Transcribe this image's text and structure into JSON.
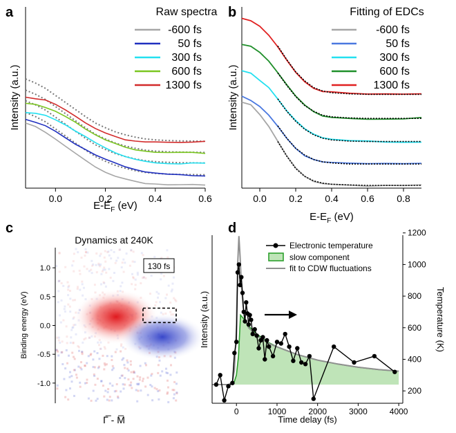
{
  "chart_data": [
    {
      "panel": "a",
      "type": "line",
      "xlabel": "E-EF (eV)",
      "ylabel": "Intensity (a.u.)",
      "xlim": [
        -0.12,
        0.6
      ],
      "x_ticks": [
        "0.0",
        "0.2",
        "0.4",
        "0.6"
      ],
      "legend_title": "Raw spectra",
      "legend_position": "top-right",
      "series": [
        {
          "name": "-600 fs",
          "color": "#a6a6a6",
          "x": [
            -0.12,
            -0.08,
            -0.04,
            0.0,
            0.04,
            0.08,
            0.12,
            0.16,
            0.2,
            0.24,
            0.28,
            0.32,
            0.36,
            0.4,
            0.45,
            0.5,
            0.55,
            0.6
          ],
          "y": [
            5.3,
            4.95,
            4.5,
            3.9,
            3.3,
            2.7,
            2.1,
            1.55,
            1.15,
            0.8,
            0.55,
            0.35,
            0.2,
            0.12,
            0.06,
            0.03,
            0.02,
            0.0
          ]
        },
        {
          "name": "50 fs",
          "color": "#1f2fbf",
          "x": [
            -0.12,
            -0.08,
            -0.04,
            0.0,
            0.04,
            0.08,
            0.12,
            0.16,
            0.2,
            0.24,
            0.28,
            0.32,
            0.36,
            0.4,
            0.45,
            0.5,
            0.55,
            0.6
          ],
          "y": [
            5.6,
            5.4,
            5.1,
            4.6,
            4.05,
            3.55,
            3.05,
            2.6,
            2.2,
            1.85,
            1.55,
            1.3,
            1.12,
            1.0,
            0.92,
            0.88,
            0.86,
            0.85
          ]
        },
        {
          "name": "300 fs",
          "color": "#22e0f0",
          "x": [
            -0.12,
            -0.08,
            -0.04,
            0.0,
            0.04,
            0.08,
            0.12,
            0.16,
            0.2,
            0.24,
            0.28,
            0.32,
            0.36,
            0.4,
            0.45,
            0.5,
            0.55,
            0.6
          ],
          "y": [
            6.2,
            6.1,
            5.9,
            5.55,
            5.1,
            4.6,
            4.1,
            3.6,
            3.15,
            2.8,
            2.5,
            2.25,
            2.08,
            1.98,
            1.9,
            1.86,
            1.85,
            1.85
          ]
        },
        {
          "name": "600 fs",
          "color": "#7ac620",
          "x": [
            -0.12,
            -0.08,
            -0.04,
            0.0,
            0.04,
            0.08,
            0.12,
            0.16,
            0.2,
            0.24,
            0.28,
            0.32,
            0.36,
            0.4,
            0.45,
            0.5,
            0.55,
            0.6
          ],
          "y": [
            6.95,
            6.85,
            6.65,
            6.35,
            5.9,
            5.4,
            4.85,
            4.35,
            3.9,
            3.5,
            3.2,
            3.0,
            2.88,
            2.8,
            2.76,
            2.75,
            2.75,
            2.75
          ]
        },
        {
          "name": "1300 fs",
          "color": "#d22a2a",
          "x": [
            -0.12,
            -0.08,
            -0.04,
            0.0,
            0.04,
            0.08,
            0.12,
            0.16,
            0.2,
            0.24,
            0.28,
            0.32,
            0.36,
            0.4,
            0.45,
            0.5,
            0.55,
            0.6
          ],
          "y": [
            7.55,
            7.4,
            7.2,
            6.85,
            6.4,
            5.85,
            5.3,
            4.8,
            4.4,
            4.1,
            3.9,
            3.78,
            3.72,
            3.7,
            3.7,
            3.7,
            3.7,
            3.7
          ]
        }
      ]
    },
    {
      "panel": "b",
      "type": "line",
      "xlabel": "E-EF (eV)",
      "ylabel": "Intensity (a.u.)",
      "xlim": [
        -0.1,
        0.9
      ],
      "x_ticks": [
        "0.0",
        "0.2",
        "0.4",
        "0.6",
        "0.8"
      ],
      "legend_title": "Fitting of EDCs",
      "legend_position": "top-right",
      "fit_line_style": "black dotted",
      "series": [
        {
          "name": "-600 fs",
          "color": "#a6a6a6",
          "x": [
            -0.1,
            -0.05,
            0.0,
            0.05,
            0.1,
            0.15,
            0.2,
            0.25,
            0.3,
            0.35,
            0.4,
            0.5,
            0.6,
            0.7,
            0.8,
            0.9
          ],
          "y": [
            3.7,
            3.55,
            3.15,
            2.6,
            1.95,
            1.3,
            0.75,
            0.4,
            0.2,
            0.1,
            0.05,
            0.02,
            0.0,
            0.0,
            0.0,
            0.0
          ]
        },
        {
          "name": "50 fs",
          "color": "#4a78e0",
          "x": [
            -0.1,
            -0.05,
            0.0,
            0.05,
            0.1,
            0.15,
            0.2,
            0.25,
            0.3,
            0.35,
            0.4,
            0.5,
            0.6,
            0.7,
            0.8,
            0.9
          ],
          "y": [
            3.95,
            3.75,
            3.5,
            3.15,
            2.65,
            2.1,
            1.65,
            1.35,
            1.15,
            1.05,
            1.0,
            0.95,
            0.95,
            0.95,
            0.95,
            0.95
          ]
        },
        {
          "name": "300 fs",
          "color": "#22e0f0",
          "x": [
            -0.1,
            -0.05,
            0.0,
            0.05,
            0.1,
            0.15,
            0.2,
            0.25,
            0.3,
            0.35,
            0.4,
            0.5,
            0.6,
            0.7,
            0.8,
            0.9
          ],
          "y": [
            5.1,
            5.0,
            4.7,
            4.35,
            3.85,
            3.3,
            2.85,
            2.5,
            2.25,
            2.1,
            2.02,
            1.97,
            1.95,
            1.95,
            1.95,
            1.95
          ]
        },
        {
          "name": "600 fs",
          "color": "#1f8f2a",
          "x": [
            -0.1,
            -0.05,
            0.0,
            0.05,
            0.1,
            0.15,
            0.2,
            0.25,
            0.3,
            0.35,
            0.4,
            0.5,
            0.6,
            0.7,
            0.8,
            0.9
          ],
          "y": [
            6.25,
            6.15,
            5.9,
            5.5,
            5.0,
            4.45,
            3.95,
            3.55,
            3.3,
            3.12,
            3.05,
            3.0,
            2.98,
            2.98,
            2.98,
            2.98
          ]
        },
        {
          "name": "1300 fs",
          "color": "#e02020",
          "x": [
            -0.1,
            -0.05,
            0.0,
            0.05,
            0.1,
            0.15,
            0.2,
            0.25,
            0.3,
            0.35,
            0.4,
            0.5,
            0.6,
            0.7,
            0.8,
            0.9
          ],
          "y": [
            7.4,
            7.3,
            7.05,
            6.7,
            6.2,
            5.6,
            5.05,
            4.65,
            4.35,
            4.2,
            4.12,
            4.07,
            4.05,
            4.05,
            4.05,
            4.05
          ]
        }
      ]
    },
    {
      "panel": "c",
      "type": "heatmap",
      "title": "Dynamics at 240K",
      "ylabel": "Binding energy (eV)",
      "xlabel": "Γ̅ - M̅",
      "ylim": [
        -1.35,
        1.35
      ],
      "y_ticks": [
        "1.0",
        "0.5",
        "0.0",
        "-0.5",
        "-1.0"
      ],
      "annotation": "130 fs",
      "features": [
        {
          "region": "red intensity gain",
          "center_E": 0.15,
          "color": "#e0191e"
        },
        {
          "region": "blue intensity loss",
          "center_E": -0.2,
          "color": "#2e3ec8"
        }
      ],
      "box": {
        "E_range": [
          0.05,
          0.3
        ]
      }
    },
    {
      "panel": "d",
      "type": "line",
      "xlabel": "Time delay (fs)",
      "ylabel": "Intensity (a.u.)",
      "y2label": "Temperature (K)",
      "xlim": [
        -600,
        4100
      ],
      "x_ticks": [
        "0",
        "1000",
        "2000",
        "3000",
        "4000"
      ],
      "y2lim": [
        130,
        1200
      ],
      "y2_ticks": [
        "200",
        "400",
        "600",
        "800",
        "1000",
        "1200"
      ],
      "legend_position": "top-right",
      "series": [
        {
          "name": "Electronic temperature",
          "color": "#000000",
          "marker": "circle",
          "x": [
            -500,
            -400,
            -300,
            -200,
            -100,
            -50,
            0,
            30,
            60,
            90,
            120,
            150,
            180,
            210,
            240,
            270,
            300,
            330,
            360,
            400,
            450,
            500,
            550,
            600,
            650,
            700,
            750,
            800,
            900,
            1000,
            1100,
            1200,
            1300,
            1400,
            1500,
            1600,
            1700,
            1800,
            1900,
            2400,
            2900,
            3400,
            3900
          ],
          "y": [
            240,
            300,
            140,
            230,
            250,
            440,
            510,
            950,
            1000,
            870,
            920,
            820,
            700,
            640,
            760,
            690,
            620,
            680,
            650,
            560,
            590,
            550,
            470,
            520,
            540,
            400,
            520,
            480,
            420,
            510,
            500,
            560,
            480,
            390,
            470,
            380,
            370,
            420,
            150,
            480,
            380,
            420,
            320
          ]
        },
        {
          "name": "slow component",
          "color": "#2da02d",
          "fill": "#bfe4b8",
          "x": [
            -600,
            -200,
            -100,
            -50,
            0,
            50,
            100,
            200,
            300,
            500,
            800,
            1000,
            1500,
            2000,
            2500,
            3000,
            3500,
            4000
          ],
          "y": [
            240,
            240,
            245,
            260,
            300,
            420,
            680,
            650,
            610,
            560,
            505,
            480,
            430,
            395,
            370,
            350,
            335,
            325
          ]
        },
        {
          "name": "fit to CDW fluctuations",
          "color": "#909090",
          "x": [
            -600,
            -200,
            -100,
            -50,
            0,
            30,
            60,
            90,
            120,
            160,
            200,
            300,
            500,
            800,
            1000,
            1500,
            2000,
            2500,
            3000,
            3500,
            4000
          ],
          "y": [
            240,
            240,
            255,
            330,
            620,
            1000,
            1180,
            1050,
            880,
            740,
            660,
            600,
            550,
            500,
            478,
            430,
            395,
            370,
            350,
            335,
            325
          ]
        }
      ],
      "annotation": "arrow pointing right"
    }
  ],
  "panel_labels": [
    "a",
    "b",
    "c",
    "d"
  ],
  "texts": {
    "a_legend_title": "Raw spectra",
    "b_legend_title": "Fitting of EDCs",
    "c_title": "Dynamics at 240K",
    "c_box_label": "130 fs"
  }
}
